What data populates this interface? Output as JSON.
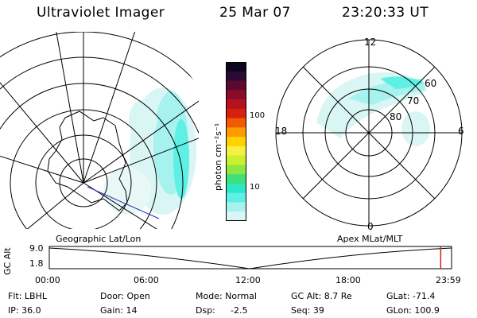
{
  "header": {
    "instrument": "Ultraviolet Imager",
    "date": "25 Mar 07",
    "time": "23:20:33 UT"
  },
  "colorbar": {
    "unit_label": "photon cm⁻²s⁻¹",
    "ticks": [
      "100",
      "10"
    ],
    "colors": [
      "#0b0620",
      "#2c0a35",
      "#5a0a30",
      "#8a0a2a",
      "#b4121e",
      "#d62010",
      "#f05a00",
      "#ff9a00",
      "#ffd200",
      "#f6f040",
      "#c8f030",
      "#8ee640",
      "#3ee07a",
      "#2ee6c8",
      "#5ef0e4",
      "#a6f2ee",
      "#d9f6f4"
    ]
  },
  "left_panel": {
    "label": "Geographic Lat/Lon"
  },
  "right_panel": {
    "label": "Apex MLat/MLT",
    "mlt_labels": {
      "top": "12",
      "bottom": "0",
      "left": "18",
      "right": "6"
    },
    "lat_labels": [
      "60",
      "70",
      "80"
    ]
  },
  "timeline": {
    "y_title": "GC Alt",
    "y_ticks": [
      "9.0",
      "1.8"
    ],
    "x_ticks": [
      "00:00",
      "06:00",
      "12:00",
      "18:00",
      "23:59"
    ],
    "current_time_fraction": 0.973
  },
  "info": {
    "filter": "Flt: LBHL",
    "door": "Door: Open",
    "mode": "Mode: Normal",
    "gc_alt": "GC Alt: 8.7 Re",
    "glat": "GLat: -71.4",
    "ip": "IP: 36.0",
    "gain": "Gain: 14",
    "dsp_label": "Dsp:",
    "dsp_value": "-2.5",
    "seq": "Seq: 39",
    "glon": "GLon: 100.9"
  }
}
